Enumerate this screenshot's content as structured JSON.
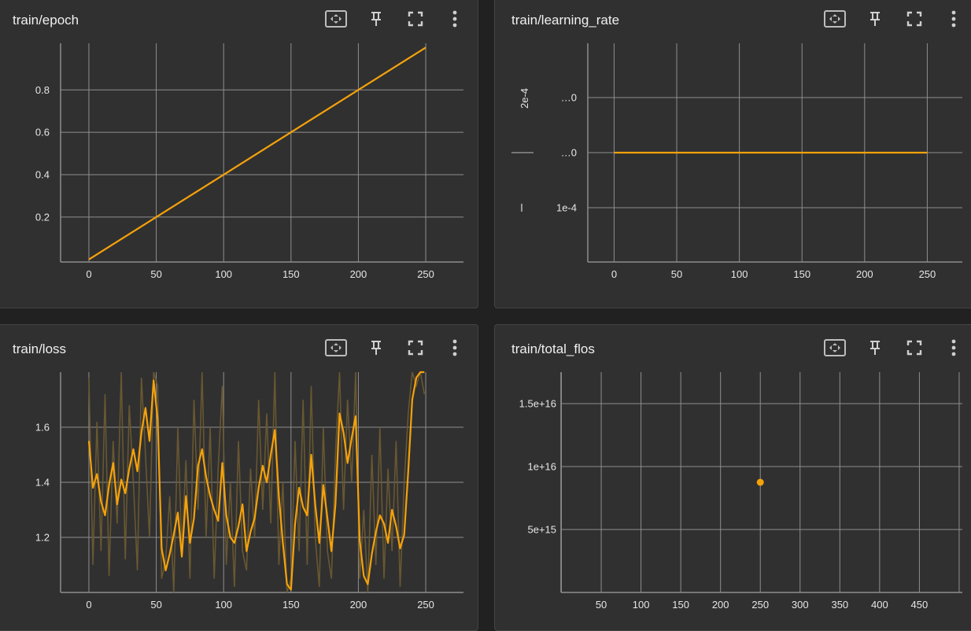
{
  "colors": {
    "accent": "#f5a20a",
    "background": "#303030",
    "grid": "#8e8e8e"
  },
  "cards": [
    {
      "title": "train/epoch",
      "toolbar": [
        "fit-domain-icon",
        "pin-icon",
        "fullscreen-icon",
        "more-vert-icon"
      ]
    },
    {
      "title": "train/learning_rate",
      "toolbar": [
        "fit-domain-icon",
        "pin-icon",
        "fullscreen-icon",
        "more-vert-icon"
      ]
    },
    {
      "title": "train/loss",
      "toolbar": [
        "fit-domain-icon",
        "pin-icon",
        "fullscreen-icon",
        "more-vert-icon"
      ]
    },
    {
      "title": "train/total_flos",
      "toolbar": [
        "fit-domain-icon",
        "pin-icon",
        "fullscreen-icon",
        "more-vert-icon"
      ]
    }
  ],
  "chart_data": [
    {
      "type": "line",
      "title": "train/epoch",
      "x_ticks": [
        "0",
        "50",
        "100",
        "150",
        "200",
        "250"
      ],
      "y_ticks": [
        "0.2",
        "0.4",
        "0.6",
        "0.8"
      ],
      "xlim": [
        -21,
        278
      ],
      "ylim": [
        -0.012,
        1.02
      ],
      "grid": true,
      "series": [
        {
          "x": [
            0,
            250
          ],
          "y": [
            0,
            1.0
          ]
        }
      ]
    },
    {
      "type": "line",
      "title": "train/learning_rate",
      "x_ticks": [
        "0",
        "50",
        "100",
        "150",
        "200",
        "250"
      ],
      "y_ticks": [
        "…0",
        "…0",
        "1e-4"
      ],
      "y_axis_label": "2e-4",
      "xlim": [
        -21,
        278
      ],
      "grid": true,
      "series": [
        {
          "x": [
            0,
            250
          ],
          "y": [
            0.0002,
            0.0002
          ]
        }
      ]
    },
    {
      "type": "line",
      "title": "train/loss",
      "x_ticks": [
        "0",
        "50",
        "100",
        "150",
        "200",
        "250"
      ],
      "y_ticks": [
        "1.2",
        "1.4",
        "1.6"
      ],
      "xlim": [
        -21,
        278
      ],
      "ylim": [
        1.0,
        1.8
      ],
      "grid": true,
      "smoothed_series": {
        "x": [
          0,
          3,
          6,
          9,
          12,
          15,
          18,
          21,
          24,
          27,
          30,
          33,
          36,
          39,
          42,
          45,
          48,
          51,
          54,
          57,
          60,
          63,
          66,
          69,
          72,
          75,
          78,
          81,
          84,
          87,
          90,
          93,
          96,
          99,
          102,
          105,
          108,
          111,
          114,
          117,
          120,
          123,
          126,
          129,
          132,
          135,
          138,
          141,
          144,
          147,
          150,
          153,
          156,
          159,
          162,
          165,
          168,
          171,
          174,
          177,
          180,
          183,
          186,
          189,
          192,
          195,
          198,
          201,
          204,
          207,
          210,
          213,
          216,
          219,
          222,
          225,
          228,
          231,
          234,
          237,
          240,
          243,
          246,
          249
        ],
        "y": [
          1.55,
          1.38,
          1.43,
          1.33,
          1.28,
          1.39,
          1.47,
          1.32,
          1.41,
          1.36,
          1.45,
          1.52,
          1.44,
          1.58,
          1.67,
          1.55,
          1.77,
          1.63,
          1.16,
          1.08,
          1.14,
          1.21,
          1.29,
          1.13,
          1.35,
          1.18,
          1.27,
          1.46,
          1.52,
          1.42,
          1.35,
          1.3,
          1.26,
          1.47,
          1.28,
          1.2,
          1.18,
          1.24,
          1.32,
          1.15,
          1.22,
          1.27,
          1.38,
          1.46,
          1.4,
          1.5,
          1.59,
          1.35,
          1.18,
          1.03,
          1.01,
          1.25,
          1.38,
          1.31,
          1.28,
          1.5,
          1.32,
          1.18,
          1.39,
          1.27,
          1.15,
          1.32,
          1.65,
          1.58,
          1.47,
          1.56,
          1.64,
          1.19,
          1.06,
          1.03,
          1.14,
          1.22,
          1.28,
          1.25,
          1.18,
          1.3,
          1.24,
          1.16,
          1.21,
          1.44,
          1.7,
          1.78,
          1.8,
          1.8
        ]
      },
      "raw_series": {
        "x": [
          0,
          3,
          6,
          9,
          12,
          15,
          18,
          21,
          24,
          27,
          30,
          33,
          36,
          39,
          42,
          45,
          48,
          51,
          54,
          57,
          60,
          63,
          66,
          69,
          72,
          75,
          78,
          81,
          84,
          87,
          90,
          93,
          96,
          99,
          102,
          105,
          108,
          111,
          114,
          117,
          120,
          123,
          126,
          129,
          132,
          135,
          138,
          141,
          144,
          147,
          150,
          153,
          156,
          159,
          162,
          165,
          168,
          171,
          174,
          177,
          180,
          183,
          186,
          189,
          192,
          195,
          198,
          201,
          204,
          207,
          210,
          213,
          216,
          219,
          222,
          225,
          228,
          231,
          234,
          237,
          240,
          243,
          246,
          249
        ],
        "y": [
          1.78,
          1.1,
          1.62,
          1.15,
          1.72,
          1.06,
          1.55,
          1.25,
          1.8,
          1.12,
          1.68,
          1.4,
          1.08,
          1.78,
          1.5,
          1.2,
          1.8,
          1.75,
          1.05,
          1.12,
          1.35,
          1.0,
          1.6,
          1.15,
          1.48,
          1.05,
          1.7,
          1.3,
          1.8,
          1.2,
          1.6,
          1.05,
          1.45,
          1.75,
          1.1,
          1.4,
          1.02,
          1.55,
          1.15,
          1.08,
          1.45,
          1.2,
          1.7,
          1.3,
          1.65,
          1.25,
          1.8,
          1.1,
          1.4,
          1.0,
          1.05,
          1.55,
          1.15,
          1.7,
          1.1,
          1.75,
          1.2,
          1.02,
          1.6,
          1.15,
          1.05,
          1.5,
          1.8,
          1.3,
          1.7,
          1.4,
          1.8,
          1.05,
          1.3,
          1.0,
          1.5,
          1.1,
          1.6,
          1.05,
          1.45,
          1.15,
          1.55,
          1.02,
          1.4,
          1.65,
          1.8,
          1.75,
          1.8,
          1.72
        ]
      }
    },
    {
      "type": "scatter",
      "title": "train/total_flos",
      "x_ticks": [
        "50",
        "100",
        "150",
        "200",
        "250",
        "300",
        "350",
        "400",
        "450"
      ],
      "y_ticks": [
        "5e+15",
        "1e+16",
        "1.5e+16"
      ],
      "xlim": [
        -0.5,
        504
      ],
      "ylim": [
        0,
        1.75e+16
      ],
      "grid": true,
      "series": [
        {
          "x": [
            250
          ],
          "y": [
            8750000000000000.0
          ]
        }
      ]
    }
  ]
}
